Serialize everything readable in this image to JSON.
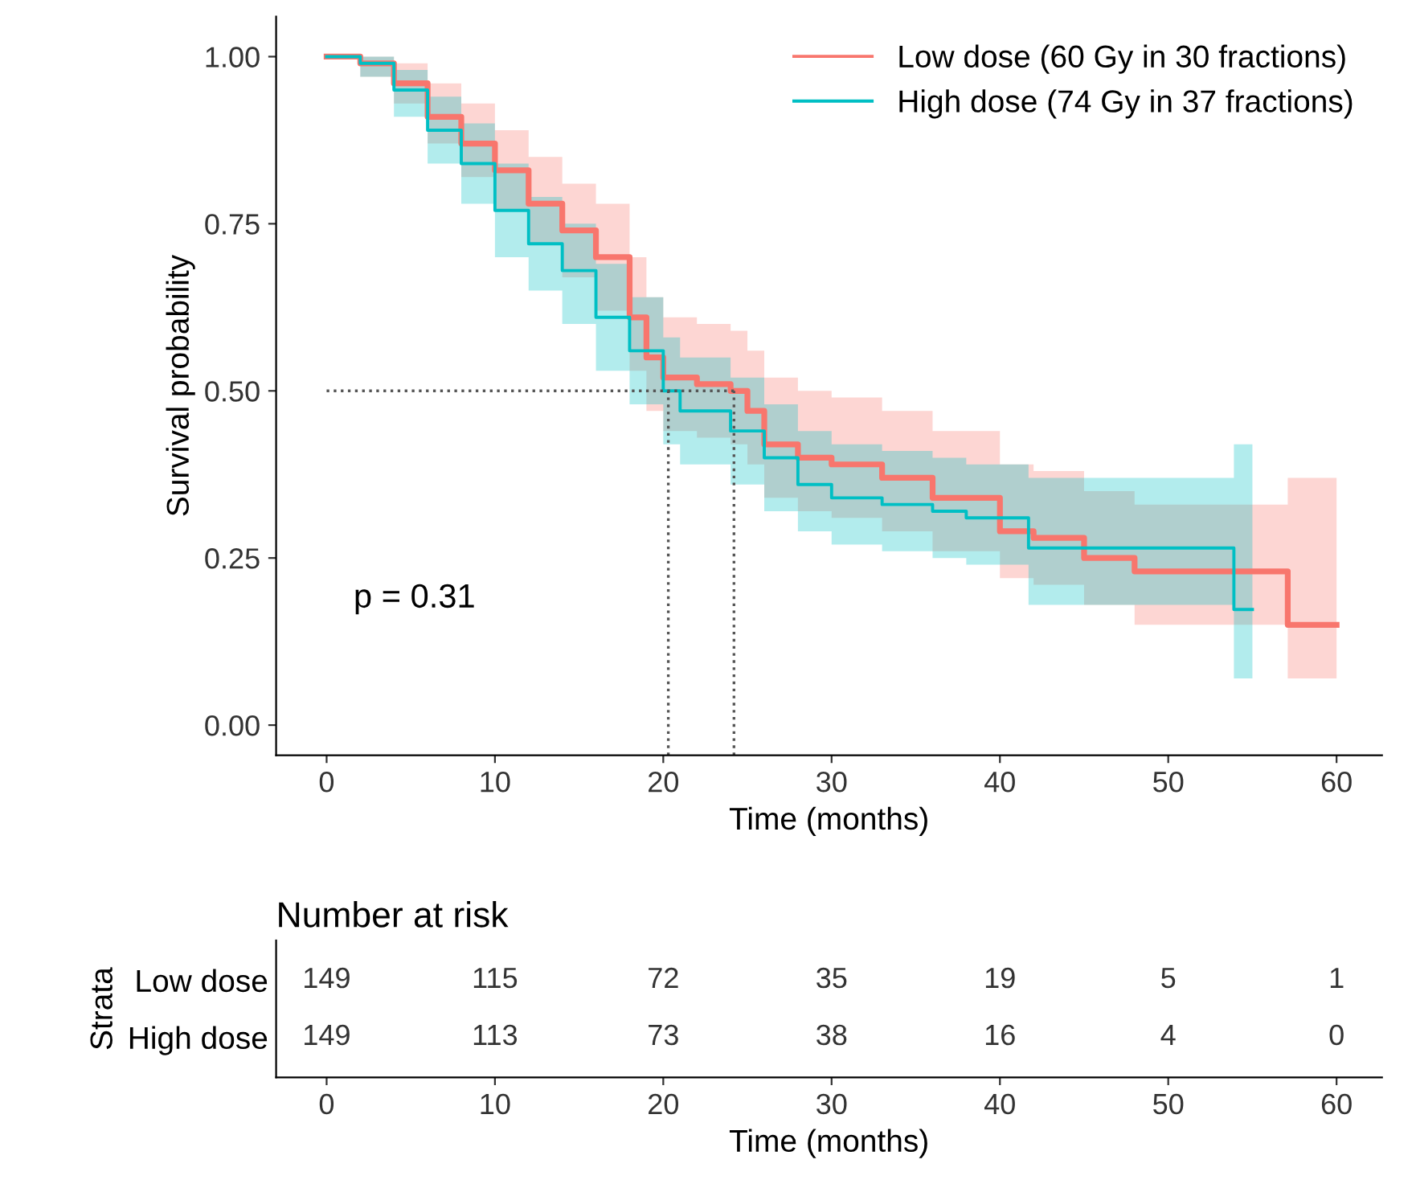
{
  "chart_data": [
    {
      "type": "step",
      "xlabel": "Time (months)",
      "ylabel": "Survival probability",
      "annotations": [
        "p = 0.31"
      ],
      "xlim": [
        -3,
        62.7
      ],
      "ylim": [
        -0.045,
        1.06
      ],
      "xticks": [
        0,
        10,
        20,
        30,
        40,
        50,
        60
      ],
      "yticks": [
        {
          "value": 0,
          "label": "0.00"
        },
        {
          "value": 0.25,
          "label": "0.25"
        },
        {
          "value": 0.5,
          "label": "0.50"
        },
        {
          "value": 0.75,
          "label": "0.75"
        },
        {
          "value": 1,
          "label": "1.00"
        }
      ],
      "grid": false,
      "legend": "top right",
      "ref_lines": [
        {
          "axis": "y",
          "value": 0.5,
          "color": "#555555",
          "line_style": "dotted"
        },
        {
          "axis": "x",
          "value": 20.3,
          "color": "#555555",
          "line_style": "dotted"
        },
        {
          "axis": "x",
          "value": 24.2,
          "color": "#555555",
          "line_style": "dotted"
        }
      ],
      "series": [
        {
          "name": "Low dose (60 Gy in 30 fractions)",
          "color": "#f8766d",
          "x": [
            0,
            2,
            4,
            6,
            8,
            10,
            12,
            14,
            16,
            18,
            19,
            20,
            22,
            24,
            25,
            26,
            28,
            30,
            33,
            36,
            40,
            42,
            45,
            48,
            54,
            57.1,
            60
          ],
          "values": [
            1.0,
            0.99,
            0.96,
            0.91,
            0.87,
            0.83,
            0.78,
            0.74,
            0.7,
            0.61,
            0.55,
            0.52,
            0.51,
            0.5,
            0.47,
            0.42,
            0.4,
            0.39,
            0.37,
            0.34,
            0.29,
            0.28,
            0.25,
            0.23,
            0.23,
            0.15,
            0.15
          ],
          "lower": [
            1.0,
            0.97,
            0.93,
            0.87,
            0.82,
            0.77,
            0.72,
            0.67,
            0.62,
            0.53,
            0.47,
            0.44,
            0.43,
            0.42,
            0.39,
            0.34,
            0.32,
            0.31,
            0.29,
            0.26,
            0.22,
            0.21,
            0.18,
            0.15,
            0.15,
            0.07,
            0.07
          ],
          "upper": [
            1.0,
            1.0,
            0.99,
            0.96,
            0.93,
            0.89,
            0.85,
            0.81,
            0.78,
            0.7,
            0.64,
            0.61,
            0.6,
            0.59,
            0.56,
            0.52,
            0.5,
            0.49,
            0.47,
            0.44,
            0.39,
            0.38,
            0.35,
            0.33,
            0.33,
            0.37,
            0.37
          ]
        },
        {
          "name": "High dose (74 Gy in 37 fractions)",
          "color": "#00bfc4",
          "x": [
            0,
            2,
            4,
            6,
            8,
            10,
            12,
            14,
            16,
            18,
            20,
            21,
            24,
            26,
            28,
            30,
            33,
            36,
            38,
            41.7,
            53.9,
            55
          ],
          "values": [
            1.0,
            0.99,
            0.95,
            0.89,
            0.84,
            0.77,
            0.72,
            0.68,
            0.61,
            0.56,
            0.5,
            0.47,
            0.44,
            0.4,
            0.36,
            0.34,
            0.33,
            0.32,
            0.31,
            0.265,
            0.173,
            0.173
          ],
          "lower": [
            1.0,
            0.97,
            0.91,
            0.84,
            0.78,
            0.7,
            0.65,
            0.6,
            0.53,
            0.48,
            0.42,
            0.39,
            0.36,
            0.32,
            0.29,
            0.27,
            0.26,
            0.25,
            0.24,
            0.18,
            0.07,
            0.07
          ],
          "upper": [
            1.0,
            1.0,
            0.98,
            0.94,
            0.9,
            0.84,
            0.79,
            0.75,
            0.69,
            0.64,
            0.58,
            0.55,
            0.52,
            0.48,
            0.44,
            0.42,
            0.41,
            0.4,
            0.39,
            0.37,
            0.42,
            0.42
          ]
        }
      ]
    },
    {
      "type": "heatmap",
      "title": "Number at risk",
      "xlabel": "Time (months)",
      "ylabel": "Strata",
      "data_labels": true,
      "categories": [
        "0",
        "10",
        "20",
        "30",
        "40",
        "50",
        "60"
      ],
      "y_categories": [
        "Low dose",
        "High dose"
      ],
      "cells": [
        [
          149,
          115,
          72,
          35,
          19,
          5,
          1
        ],
        [
          149,
          113,
          73,
          38,
          16,
          4,
          0
        ]
      ]
    }
  ]
}
